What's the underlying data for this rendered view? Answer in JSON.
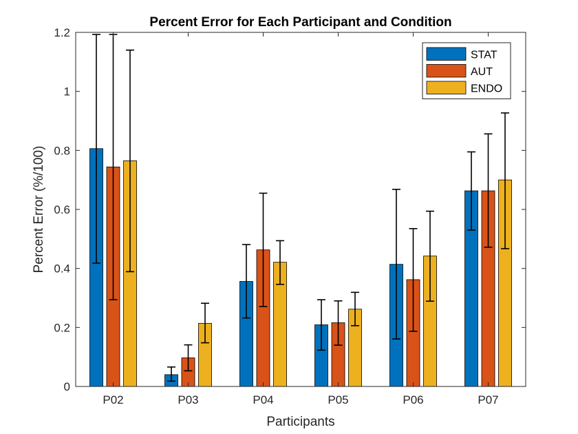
{
  "chart_data": {
    "type": "bar",
    "title": "Percent Error for Each Participant and Condition",
    "xlabel": "Participants",
    "ylabel": "Percent Error (%/100)",
    "ylim": [
      0,
      1.2
    ],
    "yticks": [
      "0",
      "0.2",
      "0.4",
      "0.6",
      "0.8",
      "1",
      "1.2"
    ],
    "categories": [
      "P02",
      "P03",
      "P04",
      "P05",
      "P06",
      "P07"
    ],
    "grid": false,
    "legend_position": "top-right",
    "series": [
      {
        "name": "STAT",
        "color": "#0072BD",
        "values": [
          0.806,
          0.04,
          0.356,
          0.209,
          0.414,
          0.663
        ],
        "error_low": [
          0.418,
          0.018,
          0.232,
          0.123,
          0.161,
          0.53
        ],
        "error_high": [
          1.193,
          0.066,
          0.481,
          0.294,
          0.668,
          0.795
        ]
      },
      {
        "name": "AUT",
        "color": "#D95319",
        "values": [
          0.744,
          0.097,
          0.463,
          0.216,
          0.362,
          0.663
        ],
        "error_low": [
          0.294,
          0.053,
          0.271,
          0.14,
          0.187,
          0.472
        ],
        "error_high": [
          1.193,
          0.141,
          0.655,
          0.29,
          0.535,
          0.856
        ]
      },
      {
        "name": "ENDO",
        "color": "#EDB120",
        "values": [
          0.765,
          0.214,
          0.421,
          0.262,
          0.442,
          0.7
        ],
        "error_low": [
          0.389,
          0.148,
          0.346,
          0.206,
          0.289,
          0.467
        ],
        "error_high": [
          1.14,
          0.282,
          0.494,
          0.319,
          0.594,
          0.927
        ]
      }
    ]
  }
}
